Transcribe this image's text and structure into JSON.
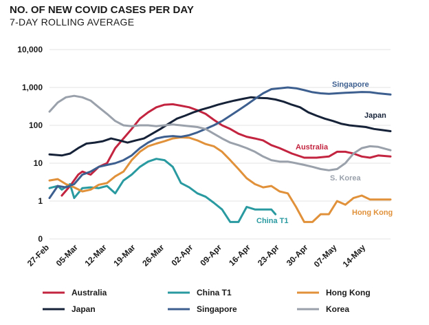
{
  "header": {
    "title": "NO. OF NEW COVID CASES PER DAY",
    "subtitle": "7-DAY ROLLING AVERAGE"
  },
  "chart_data": {
    "type": "line",
    "title": "NO. OF NEW COVID CASES PER DAY",
    "subtitle": "7-DAY ROLLING AVERAGE",
    "y_scale": "log",
    "y_ticks": [
      {
        "label": "0",
        "value": 0.1
      },
      {
        "label": "1",
        "value": 1
      },
      {
        "label": "10",
        "value": 10
      },
      {
        "label": "100",
        "value": 100
      },
      {
        "label": "1,000",
        "value": 1000
      },
      {
        "label": "10,000",
        "value": 10000
      }
    ],
    "x_ticks": [
      {
        "label": "27-Feb",
        "value": "2020-02-27"
      },
      {
        "label": "05-Mar",
        "value": "2020-03-05"
      },
      {
        "label": "12-Mar",
        "value": "2020-03-12"
      },
      {
        "label": "19-Mar",
        "value": "2020-03-19"
      },
      {
        "label": "26-Mar",
        "value": "2020-03-26"
      },
      {
        "label": "02-Apr",
        "value": "2020-04-02"
      },
      {
        "label": "09-Apr",
        "value": "2020-04-09"
      },
      {
        "label": "16-Apr",
        "value": "2020-04-16"
      },
      {
        "label": "23-Apr",
        "value": "2020-04-23"
      },
      {
        "label": "30-Apr",
        "value": "2020-04-30"
      },
      {
        "label": "07-May",
        "value": "2020-05-07"
      },
      {
        "label": "14-May",
        "value": "2020-05-14"
      }
    ],
    "xlim": [
      "2020-02-27",
      "2020-05-20"
    ],
    "ylim": [
      0.1,
      10000
    ],
    "grid": "horizontal",
    "legend_position": "bottom",
    "series": [
      {
        "name": "Australia",
        "color": "#c3243f",
        "points": [
          [
            "2020-03-01",
            1.4
          ],
          [
            "2020-03-03",
            2.5
          ],
          [
            "2020-03-05",
            5
          ],
          [
            "2020-03-06",
            6
          ],
          [
            "2020-03-08",
            5
          ],
          [
            "2020-03-10",
            8
          ],
          [
            "2020-03-12",
            10
          ],
          [
            "2020-03-14",
            25
          ],
          [
            "2020-03-16",
            45
          ],
          [
            "2020-03-18",
            80
          ],
          [
            "2020-03-20",
            150
          ],
          [
            "2020-03-22",
            220
          ],
          [
            "2020-03-24",
            300
          ],
          [
            "2020-03-26",
            350
          ],
          [
            "2020-03-28",
            360
          ],
          [
            "2020-03-30",
            330
          ],
          [
            "2020-04-01",
            300
          ],
          [
            "2020-04-03",
            250
          ],
          [
            "2020-04-05",
            200
          ],
          [
            "2020-04-07",
            140
          ],
          [
            "2020-04-09",
            100
          ],
          [
            "2020-04-11",
            80
          ],
          [
            "2020-04-13",
            60
          ],
          [
            "2020-04-15",
            50
          ],
          [
            "2020-04-17",
            45
          ],
          [
            "2020-04-19",
            40
          ],
          [
            "2020-04-21",
            30
          ],
          [
            "2020-04-23",
            25
          ],
          [
            "2020-04-26",
            18
          ],
          [
            "2020-04-29",
            14
          ],
          [
            "2020-05-02",
            14
          ],
          [
            "2020-05-05",
            15
          ],
          [
            "2020-05-07",
            20
          ],
          [
            "2020-05-09",
            20
          ],
          [
            "2020-05-11",
            18
          ],
          [
            "2020-05-13",
            15
          ],
          [
            "2020-05-15",
            14
          ],
          [
            "2020-05-17",
            16
          ],
          [
            "2020-05-20",
            15
          ]
        ]
      },
      {
        "name": "China T1",
        "color": "#2a9aa1",
        "points": [
          [
            "2020-02-27",
            2.2
          ],
          [
            "2020-02-29",
            2.5
          ],
          [
            "2020-03-01",
            2
          ],
          [
            "2020-03-03",
            2.8
          ],
          [
            "2020-03-04",
            1.2
          ],
          [
            "2020-03-06",
            2.2
          ],
          [
            "2020-03-08",
            2.3
          ],
          [
            "2020-03-10",
            2.2
          ],
          [
            "2020-03-12",
            2.5
          ],
          [
            "2020-03-14",
            1.6
          ],
          [
            "2020-03-16",
            3.5
          ],
          [
            "2020-03-18",
            5
          ],
          [
            "2020-03-20",
            8
          ],
          [
            "2020-03-22",
            11
          ],
          [
            "2020-03-24",
            13
          ],
          [
            "2020-03-26",
            12
          ],
          [
            "2020-03-28",
            8
          ],
          [
            "2020-03-30",
            3
          ],
          [
            "2020-04-01",
            2.3
          ],
          [
            "2020-04-03",
            1.6
          ],
          [
            "2020-04-05",
            1.3
          ],
          [
            "2020-04-07",
            0.9
          ],
          [
            "2020-04-09",
            0.6
          ],
          [
            "2020-04-11",
            0.28
          ],
          [
            "2020-04-13",
            0.28
          ],
          [
            "2020-04-15",
            0.7
          ],
          [
            "2020-04-17",
            0.6
          ],
          [
            "2020-04-19",
            0.6
          ],
          [
            "2020-04-21",
            0.6
          ],
          [
            "2020-04-22",
            0.45
          ]
        ]
      },
      {
        "name": "Hong Kong",
        "color": "#e0913a",
        "points": [
          [
            "2020-02-27",
            3.5
          ],
          [
            "2020-02-29",
            3.8
          ],
          [
            "2020-03-02",
            2.8
          ],
          [
            "2020-03-04",
            2.3
          ],
          [
            "2020-03-06",
            1.8
          ],
          [
            "2020-03-08",
            2
          ],
          [
            "2020-03-10",
            2.7
          ],
          [
            "2020-03-12",
            3
          ],
          [
            "2020-03-14",
            4.5
          ],
          [
            "2020-03-16",
            6
          ],
          [
            "2020-03-18",
            12
          ],
          [
            "2020-03-20",
            20
          ],
          [
            "2020-03-22",
            28
          ],
          [
            "2020-03-24",
            33
          ],
          [
            "2020-03-26",
            38
          ],
          [
            "2020-03-28",
            45
          ],
          [
            "2020-03-30",
            48
          ],
          [
            "2020-04-01",
            47
          ],
          [
            "2020-04-03",
            40
          ],
          [
            "2020-04-05",
            32
          ],
          [
            "2020-04-07",
            28
          ],
          [
            "2020-04-09",
            20
          ],
          [
            "2020-04-11",
            12
          ],
          [
            "2020-04-13",
            7
          ],
          [
            "2020-04-15",
            4
          ],
          [
            "2020-04-17",
            2.8
          ],
          [
            "2020-04-19",
            2.3
          ],
          [
            "2020-04-21",
            2.5
          ],
          [
            "2020-04-23",
            1.8
          ],
          [
            "2020-04-25",
            1.6
          ],
          [
            "2020-04-27",
            0.7
          ],
          [
            "2020-04-29",
            0.28
          ],
          [
            "2020-05-01",
            0.28
          ],
          [
            "2020-05-03",
            0.45
          ],
          [
            "2020-05-05",
            0.45
          ],
          [
            "2020-05-07",
            1
          ],
          [
            "2020-05-09",
            0.8
          ],
          [
            "2020-05-11",
            1.2
          ],
          [
            "2020-05-13",
            1.4
          ],
          [
            "2020-05-15",
            1.1
          ],
          [
            "2020-05-17",
            1.1
          ],
          [
            "2020-05-20",
            1.1
          ]
        ]
      },
      {
        "name": "Japan",
        "color": "#152238",
        "points": [
          [
            "2020-02-27",
            17
          ],
          [
            "2020-03-01",
            16
          ],
          [
            "2020-03-03",
            18
          ],
          [
            "2020-03-05",
            25
          ],
          [
            "2020-03-07",
            33
          ],
          [
            "2020-03-09",
            35
          ],
          [
            "2020-03-11",
            38
          ],
          [
            "2020-03-13",
            45
          ],
          [
            "2020-03-15",
            40
          ],
          [
            "2020-03-17",
            35
          ],
          [
            "2020-03-19",
            40
          ],
          [
            "2020-03-21",
            45
          ],
          [
            "2020-03-23",
            60
          ],
          [
            "2020-03-25",
            80
          ],
          [
            "2020-03-27",
            110
          ],
          [
            "2020-03-29",
            150
          ],
          [
            "2020-03-31",
            180
          ],
          [
            "2020-04-02",
            220
          ],
          [
            "2020-04-04",
            260
          ],
          [
            "2020-04-06",
            300
          ],
          [
            "2020-04-08",
            350
          ],
          [
            "2020-04-10",
            400
          ],
          [
            "2020-04-12",
            450
          ],
          [
            "2020-04-14",
            500
          ],
          [
            "2020-04-16",
            550
          ],
          [
            "2020-04-18",
            530
          ],
          [
            "2020-04-20",
            520
          ],
          [
            "2020-04-22",
            480
          ],
          [
            "2020-04-24",
            420
          ],
          [
            "2020-04-26",
            350
          ],
          [
            "2020-04-28",
            300
          ],
          [
            "2020-04-30",
            220
          ],
          [
            "2020-05-02",
            180
          ],
          [
            "2020-05-04",
            150
          ],
          [
            "2020-05-06",
            130
          ],
          [
            "2020-05-08",
            110
          ],
          [
            "2020-05-10",
            100
          ],
          [
            "2020-05-12",
            95
          ],
          [
            "2020-05-14",
            90
          ],
          [
            "2020-05-16",
            80
          ],
          [
            "2020-05-18",
            75
          ],
          [
            "2020-05-20",
            70
          ]
        ]
      },
      {
        "name": "Singapore",
        "color": "#3d5f8f",
        "points": [
          [
            "2020-02-27",
            1.2
          ],
          [
            "2020-02-29",
            2.5
          ],
          [
            "2020-03-02",
            2.3
          ],
          [
            "2020-03-04",
            2.8
          ],
          [
            "2020-03-06",
            5
          ],
          [
            "2020-03-08",
            6
          ],
          [
            "2020-03-10",
            8
          ],
          [
            "2020-03-12",
            9
          ],
          [
            "2020-03-14",
            10
          ],
          [
            "2020-03-16",
            12
          ],
          [
            "2020-03-18",
            16
          ],
          [
            "2020-03-20",
            25
          ],
          [
            "2020-03-22",
            35
          ],
          [
            "2020-03-24",
            45
          ],
          [
            "2020-03-26",
            50
          ],
          [
            "2020-03-28",
            52
          ],
          [
            "2020-03-30",
            50
          ],
          [
            "2020-04-01",
            55
          ],
          [
            "2020-04-03",
            65
          ],
          [
            "2020-04-05",
            80
          ],
          [
            "2020-04-07",
            100
          ],
          [
            "2020-04-09",
            130
          ],
          [
            "2020-04-11",
            180
          ],
          [
            "2020-04-13",
            250
          ],
          [
            "2020-04-15",
            350
          ],
          [
            "2020-04-17",
            500
          ],
          [
            "2020-04-19",
            700
          ],
          [
            "2020-04-21",
            900
          ],
          [
            "2020-04-23",
            950
          ],
          [
            "2020-04-25",
            1000
          ],
          [
            "2020-04-27",
            950
          ],
          [
            "2020-04-29",
            850
          ],
          [
            "2020-05-01",
            750
          ],
          [
            "2020-05-03",
            700
          ],
          [
            "2020-05-05",
            680
          ],
          [
            "2020-05-07",
            700
          ],
          [
            "2020-05-09",
            720
          ],
          [
            "2020-05-11",
            740
          ],
          [
            "2020-05-13",
            760
          ],
          [
            "2020-05-15",
            750
          ],
          [
            "2020-05-17",
            700
          ],
          [
            "2020-05-20",
            650
          ]
        ]
      },
      {
        "name": "Korea",
        "color": "#9aa1ab",
        "points": [
          [
            "2020-02-27",
            230
          ],
          [
            "2020-02-29",
            400
          ],
          [
            "2020-03-02",
            550
          ],
          [
            "2020-03-04",
            600
          ],
          [
            "2020-03-06",
            550
          ],
          [
            "2020-03-08",
            450
          ],
          [
            "2020-03-10",
            300
          ],
          [
            "2020-03-12",
            200
          ],
          [
            "2020-03-14",
            130
          ],
          [
            "2020-03-16",
            100
          ],
          [
            "2020-03-18",
            95
          ],
          [
            "2020-03-20",
            100
          ],
          [
            "2020-03-22",
            100
          ],
          [
            "2020-03-24",
            95
          ],
          [
            "2020-03-26",
            100
          ],
          [
            "2020-03-28",
            105
          ],
          [
            "2020-03-30",
            100
          ],
          [
            "2020-04-01",
            95
          ],
          [
            "2020-04-03",
            90
          ],
          [
            "2020-04-05",
            80
          ],
          [
            "2020-04-07",
            60
          ],
          [
            "2020-04-09",
            45
          ],
          [
            "2020-04-11",
            35
          ],
          [
            "2020-04-13",
            30
          ],
          [
            "2020-04-15",
            25
          ],
          [
            "2020-04-17",
            20
          ],
          [
            "2020-04-19",
            15
          ],
          [
            "2020-04-21",
            12
          ],
          [
            "2020-04-23",
            11
          ],
          [
            "2020-04-25",
            11
          ],
          [
            "2020-04-27",
            10
          ],
          [
            "2020-04-29",
            9
          ],
          [
            "2020-05-01",
            8
          ],
          [
            "2020-05-03",
            7
          ],
          [
            "2020-05-05",
            6.5
          ],
          [
            "2020-05-07",
            7
          ],
          [
            "2020-05-09",
            10
          ],
          [
            "2020-05-11",
            18
          ],
          [
            "2020-05-13",
            25
          ],
          [
            "2020-05-15",
            28
          ],
          [
            "2020-05-17",
            27
          ],
          [
            "2020-05-20",
            22
          ]
        ]
      }
    ],
    "annotations": [
      {
        "text": "Singapore",
        "series": "Singapore"
      },
      {
        "text": "Japan",
        "series": "Japan"
      },
      {
        "text": "Australia",
        "series": "Australia"
      },
      {
        "text": "S. Korea",
        "series": "Korea"
      },
      {
        "text": "China T1",
        "series": "China T1"
      },
      {
        "text": "Hong Kong",
        "series": "Hong Kong"
      }
    ],
    "legend": [
      "Australia",
      "China  T1",
      "Hong Kong",
      "Japan",
      "Singapore",
      "Korea"
    ]
  }
}
